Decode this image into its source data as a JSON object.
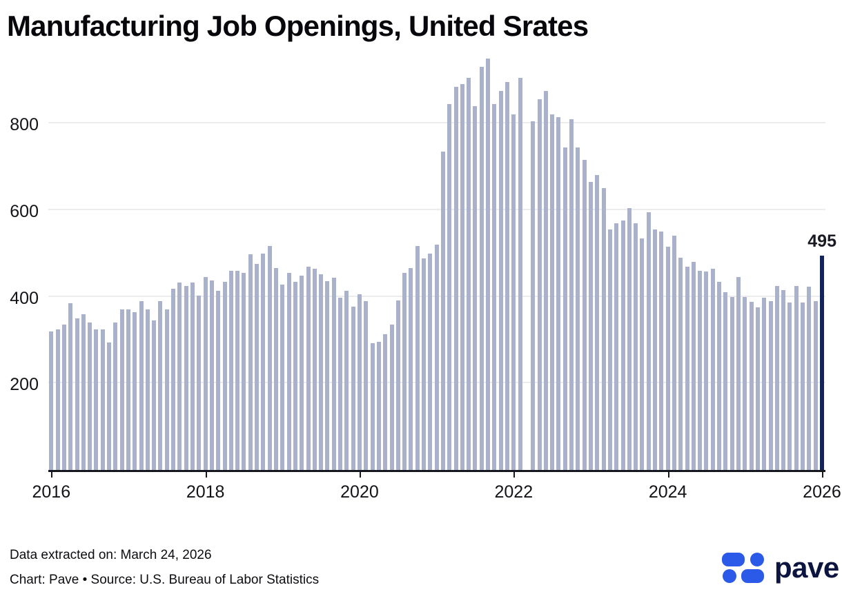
{
  "header": {
    "title": "Manufacturing Job Openings, United Srates"
  },
  "footer": {
    "line1": "Data extracted on: March 24, 2026",
    "line2": "Chart: Pave • Source: U.S. Bureau of Labor Statistics"
  },
  "logo": {
    "text": "pave",
    "mark_color": "#2c5ae8",
    "text_color": "#0c1440"
  },
  "colors": {
    "bar": "#a9b1cb",
    "highlight_bar": "#13235b",
    "gridline": "#ececef",
    "axis": "#16161f"
  },
  "chart_data": {
    "type": "bar",
    "title": "Manufacturing Job Openings, United Srates",
    "xlabel": "",
    "ylabel": "",
    "frequency": "monthly",
    "start_month": "2016-01",
    "end_month": "2026-01",
    "ylim": [
      0,
      960
    ],
    "yticks": [
      200,
      400,
      600,
      800
    ],
    "xticks": [
      "2016",
      "2018",
      "2020",
      "2022",
      "2024",
      "2026"
    ],
    "grid": "horizontal",
    "missing_month": "2022-03",
    "annotation": {
      "text": "495",
      "month": "2026-01"
    },
    "highlight_last_bar": true,
    "values": [
      320,
      325,
      335,
      385,
      350,
      360,
      340,
      325,
      325,
      295,
      340,
      370,
      370,
      365,
      390,
      370,
      345,
      390,
      370,
      418,
      432,
      425,
      433,
      403,
      445,
      438,
      414,
      435,
      459,
      459,
      455,
      498,
      476,
      500,
      517,
      466,
      428,
      455,
      434,
      448,
      469,
      464,
      451,
      436,
      443,
      397,
      413,
      377,
      406,
      390,
      292,
      296,
      313,
      336,
      391,
      455,
      466,
      517,
      488,
      500,
      520,
      735,
      845,
      885,
      890,
      905,
      840,
      930,
      950,
      845,
      875,
      895,
      820,
      905,
      null,
      805,
      855,
      875,
      820,
      815,
      745,
      810,
      745,
      715,
      665,
      680,
      650,
      555,
      570,
      575,
      605,
      570,
      535,
      595,
      555,
      550,
      515,
      540,
      490,
      470,
      480,
      460,
      458,
      465,
      435,
      410,
      400,
      445,
      400,
      388,
      375,
      398,
      390,
      425,
      415,
      387,
      424,
      386,
      423,
      390,
      495
    ]
  }
}
